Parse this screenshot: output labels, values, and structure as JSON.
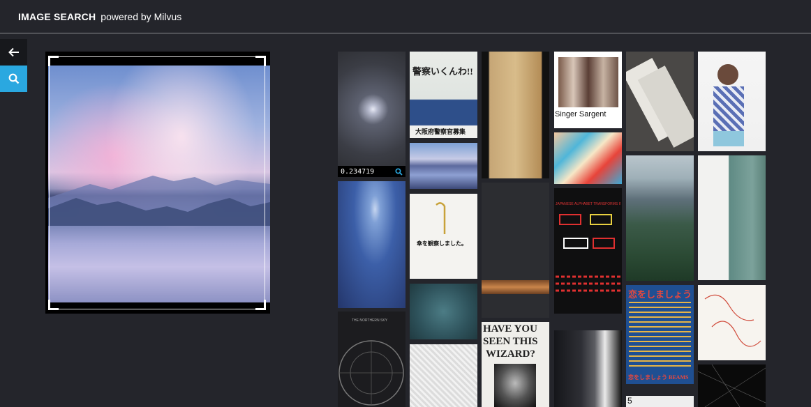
{
  "theme": {
    "background": "#24252b",
    "accent": "#2aa8e0"
  },
  "header": {
    "brand": "IMAGE SEARCH",
    "powered": "powered by Milvus"
  },
  "sidebar": {
    "back_icon": "arrow-left-icon",
    "search_icon": "search-icon"
  },
  "results": {
    "first_score": "0.234719",
    "tile_texts": {
      "sargent": "Singer Sargent",
      "police_title": "大阪府警察官募集",
      "police_headline": "警察いくんわ!!",
      "umbrella": "傘を観察しました。",
      "wizard_line1": "HAVE YOU",
      "wizard_line2": "SEEN THIS",
      "wizard_line3": "WIZARD?",
      "koi_title": "恋をしましょう",
      "koi_footer": "恋をしましょう BEAMS",
      "sushi": "JAPANESE ALPHABET TRANSFORMS INTO SUSHI",
      "starmap": "THE NORTHERN SKY",
      "num": "5"
    }
  }
}
